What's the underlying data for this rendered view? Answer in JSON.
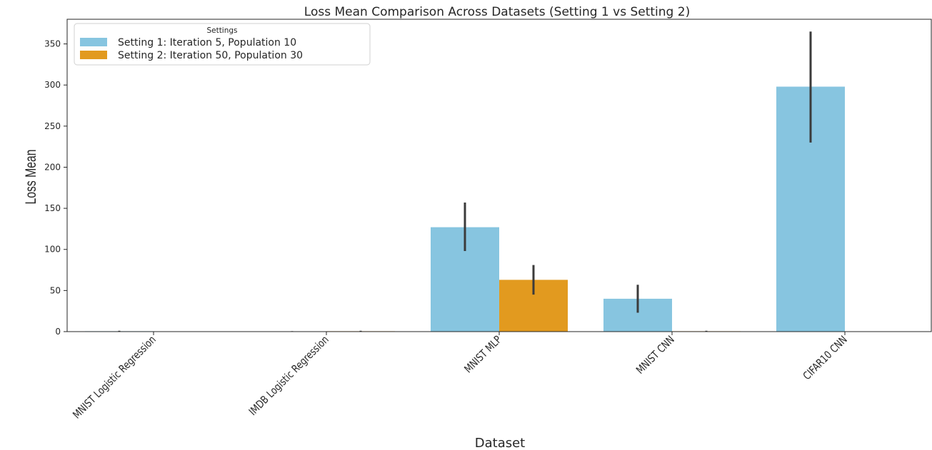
{
  "chart_data": {
    "type": "bar",
    "title": "Loss Mean Comparison Across Datasets (Setting 1 vs Setting 2)",
    "xlabel": "Dataset",
    "ylabel": "Loss Mean",
    "categories": [
      "MNIST Logistic Regression",
      "IMDB Logistic Regression",
      "MNIST MLP",
      "MNIST CNN",
      "CIFAR10 CNN"
    ],
    "ylim": [
      0,
      380
    ],
    "yticks": [
      0,
      50,
      100,
      150,
      200,
      250,
      300,
      350
    ],
    "grid": false,
    "legend": {
      "title": "Settings",
      "placement": "upper-left"
    },
    "series": [
      {
        "name": "Setting 1: Iteration 5, Population 10",
        "color": "#87c5e0",
        "values": [
          0.5,
          0.3,
          127,
          40,
          298
        ],
        "error_low": [
          0,
          0,
          98,
          23,
          230
        ],
        "error_high": [
          1,
          0.6,
          157,
          57,
          365
        ]
      },
      {
        "name": "Setting 2: Iteration 50, Population 30",
        "color": "#e29a1f",
        "values": [
          0.2,
          0.5,
          63,
          0.5,
          0
        ],
        "error_low": [
          0,
          0,
          45,
          0,
          0
        ],
        "error_high": [
          0.4,
          1,
          81,
          1,
          0
        ]
      }
    ],
    "error_bar_color": "#3b3b3b"
  }
}
